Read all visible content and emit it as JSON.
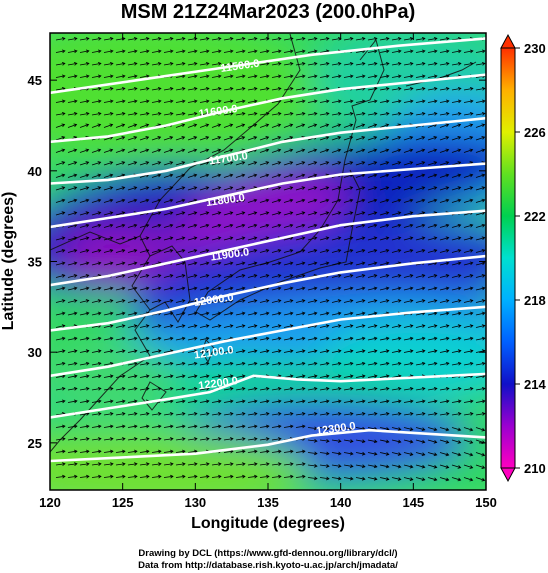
{
  "chart_data": {
    "type": "heatmap",
    "title": "MSM 21Z24Mar2023 (200.0hPa)",
    "xlabel": "Longitude (degrees)",
    "ylabel": "Latitude  (degrees)",
    "xlim": [
      120,
      150
    ],
    "ylim": [
      22.4,
      47.6
    ],
    "xticks": [
      120,
      125,
      130,
      135,
      140,
      145,
      150
    ],
    "yticks": [
      25,
      30,
      35,
      40,
      45
    ],
    "colorbar": {
      "min": 210,
      "max": 230,
      "ticks": [
        210,
        214,
        218,
        222,
        226,
        230
      ],
      "colors": [
        "#ff00c0",
        "#7a00d0",
        "#1010c8",
        "#0070ff",
        "#00e0e0",
        "#00d050",
        "#90ee20",
        "#f0f000",
        "#ffb000",
        "#ff3000"
      ]
    },
    "contours": [
      {
        "label": "11500.0",
        "level": 11500,
        "points": [
          [
            120,
            44.3
          ],
          [
            126,
            45.0
          ],
          [
            132,
            45.7
          ],
          [
            138,
            46.4
          ],
          [
            144,
            46.9
          ],
          [
            150,
            47.3
          ]
        ],
        "label_at": [
          133.1,
          45.6
        ]
      },
      {
        "label": "11600.0",
        "level": 11600,
        "points": [
          [
            120,
            41.6
          ],
          [
            124,
            41.9
          ],
          [
            128,
            42.5
          ],
          [
            132,
            43.3
          ],
          [
            136,
            44.0
          ],
          [
            140,
            44.5
          ],
          [
            145,
            44.9
          ],
          [
            150,
            45.3
          ]
        ],
        "label_at": [
          131.6,
          43.1
        ]
      },
      {
        "label": "11700.0",
        "level": 11700,
        "points": [
          [
            120,
            39.3
          ],
          [
            124,
            39.5
          ],
          [
            128,
            40.0
          ],
          [
            132,
            40.8
          ],
          [
            136,
            41.6
          ],
          [
            140,
            42.1
          ],
          [
            145,
            42.5
          ],
          [
            150,
            42.9
          ]
        ],
        "label_at": [
          132.3,
          40.5
        ]
      },
      {
        "label": "11800.0",
        "level": 11800,
        "points": [
          [
            120,
            36.9
          ],
          [
            124,
            37.4
          ],
          [
            128,
            37.9
          ],
          [
            132,
            38.6
          ],
          [
            136,
            39.3
          ],
          [
            140,
            39.8
          ],
          [
            145,
            40.1
          ],
          [
            150,
            40.4
          ]
        ],
        "label_at": [
          132.1,
          38.2
        ]
      },
      {
        "label": "11900.0",
        "level": 11900,
        "points": [
          [
            120,
            33.7
          ],
          [
            124,
            34.2
          ],
          [
            128,
            34.9
          ],
          [
            132,
            35.6
          ],
          [
            136,
            36.3
          ],
          [
            140,
            37.0
          ],
          [
            145,
            37.5
          ],
          [
            150,
            37.8
          ]
        ],
        "label_at": [
          132.4,
          35.2
        ]
      },
      {
        "label": "12000.0",
        "level": 12000,
        "points": [
          [
            120,
            31.2
          ],
          [
            124,
            31.6
          ],
          [
            128,
            32.3
          ],
          [
            132,
            33.1
          ],
          [
            136,
            33.8
          ],
          [
            140,
            34.4
          ],
          [
            145,
            34.9
          ],
          [
            150,
            35.3
          ]
        ],
        "label_at": [
          131.3,
          32.7
        ]
      },
      {
        "label": "12100.0",
        "level": 12100,
        "points": [
          [
            120,
            28.7
          ],
          [
            124,
            29.2
          ],
          [
            128,
            29.9
          ],
          [
            132,
            30.6
          ],
          [
            136,
            31.2
          ],
          [
            140,
            31.8
          ],
          [
            145,
            32.2
          ],
          [
            150,
            32.5
          ]
        ],
        "label_at": [
          131.3,
          29.8
        ]
      },
      {
        "label": "12200.0",
        "level": 12200,
        "points": [
          [
            120,
            26.4
          ],
          [
            124,
            26.9
          ],
          [
            128,
            27.4
          ],
          [
            131,
            27.8
          ],
          [
            134,
            28.7
          ],
          [
            137,
            28.5
          ],
          [
            140,
            28.4
          ],
          [
            145,
            28.6
          ],
          [
            150,
            28.8
          ]
        ],
        "label_at": [
          131.6,
          28.1
        ]
      },
      {
        "label": "12300.0",
        "level": 12300,
        "points": [
          [
            120,
            24.0
          ],
          [
            125,
            24.2
          ],
          [
            130,
            24.4
          ],
          [
            135,
            24.9
          ],
          [
            138,
            25.4
          ],
          [
            142,
            25.7
          ],
          [
            146,
            25.5
          ],
          [
            150,
            25.3
          ]
        ],
        "label_at": [
          139.7,
          25.6
        ]
      }
    ]
  },
  "credits": {
    "line1": "Drawing by DCL (https://www.gfd-dennou.org/library/dcl/)",
    "line2": "Data from http://database.rish.kyoto-u.ac.jp/arch/jmadata/"
  }
}
